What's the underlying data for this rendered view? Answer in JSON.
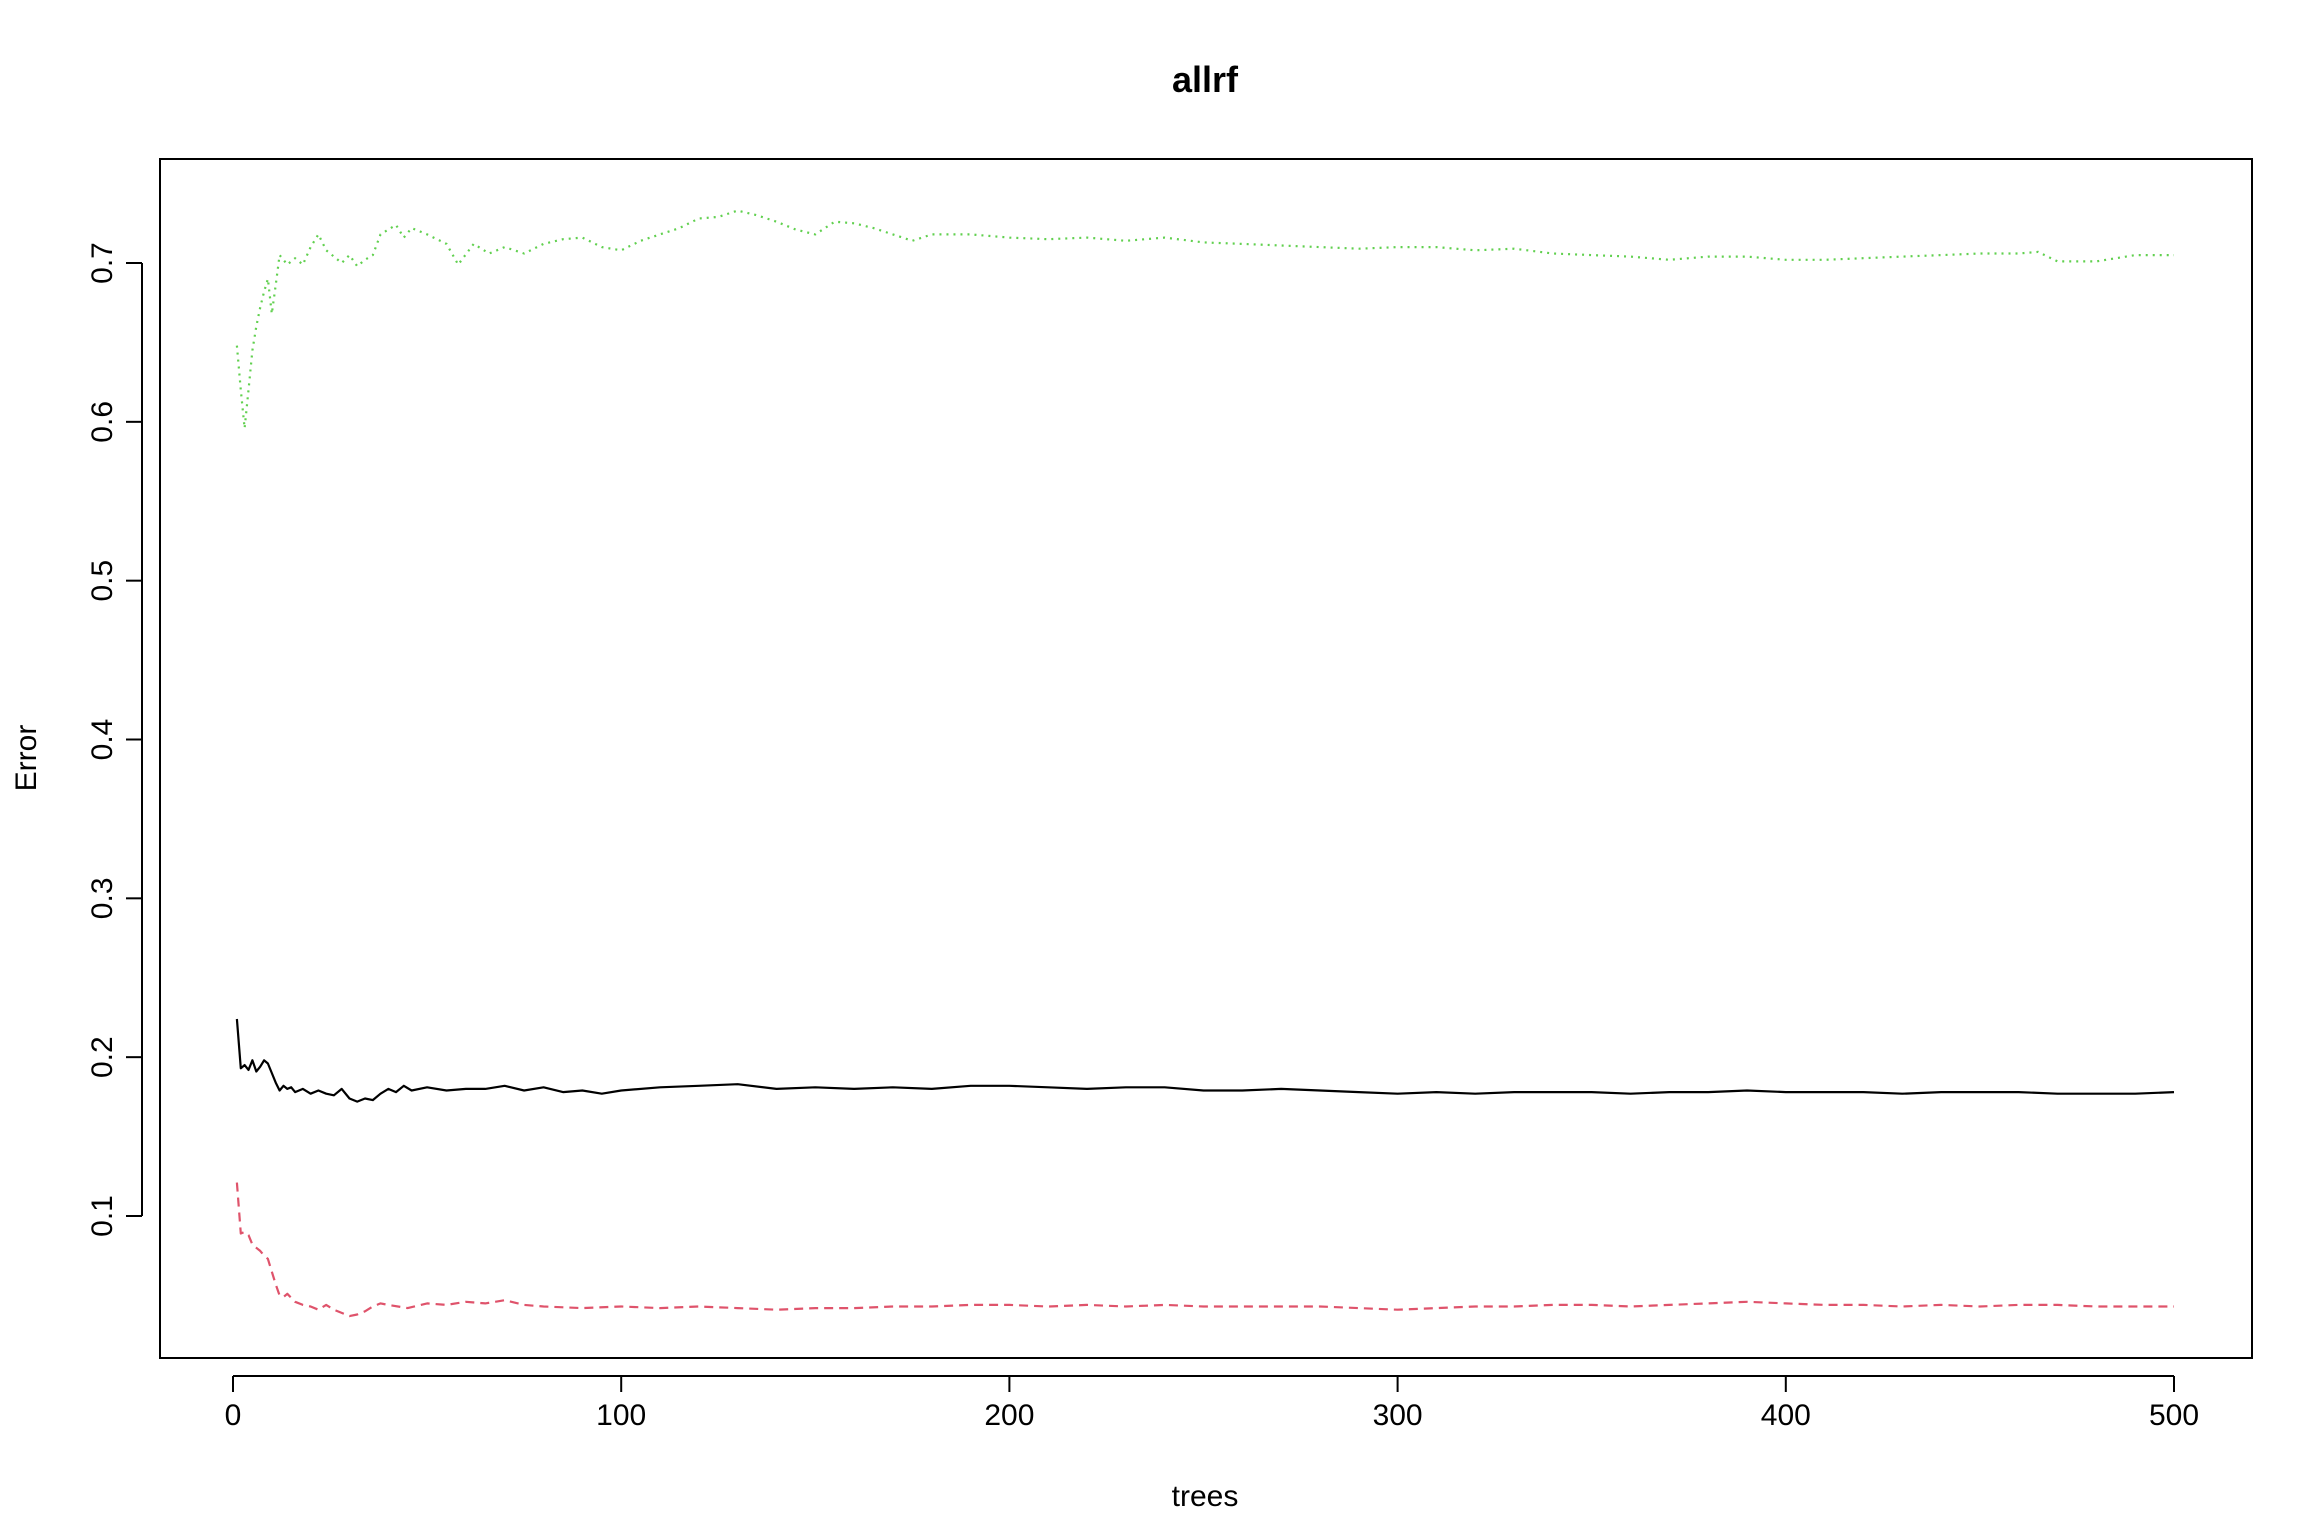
{
  "chart_data": {
    "type": "line",
    "title": "allrf",
    "xlabel": "trees",
    "ylabel": "Error",
    "xlim": [
      0,
      500
    ],
    "ylim": [
      0.04,
      0.74
    ],
    "x_ticks": [
      0,
      100,
      200,
      300,
      400,
      500
    ],
    "y_ticks": [
      0.1,
      0.2,
      0.3,
      0.4,
      0.5,
      0.6,
      0.7
    ],
    "grid": false,
    "legend": "none",
    "series": [
      {
        "color": "#000000",
        "style": "solid",
        "points": [
          [
            1,
            0.224
          ],
          [
            2,
            0.193
          ],
          [
            3,
            0.195
          ],
          [
            4,
            0.192
          ],
          [
            5,
            0.198
          ],
          [
            6,
            0.191
          ],
          [
            7,
            0.194
          ],
          [
            8,
            0.198
          ],
          [
            9,
            0.196
          ],
          [
            10,
            0.19
          ],
          [
            11,
            0.184
          ],
          [
            12,
            0.179
          ],
          [
            13,
            0.182
          ],
          [
            14,
            0.18
          ],
          [
            15,
            0.181
          ],
          [
            16,
            0.178
          ],
          [
            18,
            0.18
          ],
          [
            20,
            0.177
          ],
          [
            22,
            0.179
          ],
          [
            24,
            0.177
          ],
          [
            26,
            0.176
          ],
          [
            28,
            0.18
          ],
          [
            30,
            0.174
          ],
          [
            32,
            0.172
          ],
          [
            34,
            0.174
          ],
          [
            36,
            0.173
          ],
          [
            38,
            0.177
          ],
          [
            40,
            0.18
          ],
          [
            42,
            0.178
          ],
          [
            44,
            0.182
          ],
          [
            46,
            0.179
          ],
          [
            50,
            0.181
          ],
          [
            55,
            0.179
          ],
          [
            60,
            0.18
          ],
          [
            65,
            0.18
          ],
          [
            70,
            0.182
          ],
          [
            75,
            0.179
          ],
          [
            80,
            0.181
          ],
          [
            85,
            0.178
          ],
          [
            90,
            0.179
          ],
          [
            95,
            0.177
          ],
          [
            100,
            0.179
          ],
          [
            110,
            0.181
          ],
          [
            120,
            0.182
          ],
          [
            130,
            0.183
          ],
          [
            140,
            0.18
          ],
          [
            150,
            0.181
          ],
          [
            160,
            0.18
          ],
          [
            170,
            0.181
          ],
          [
            180,
            0.18
          ],
          [
            190,
            0.182
          ],
          [
            200,
            0.182
          ],
          [
            210,
            0.181
          ],
          [
            220,
            0.18
          ],
          [
            230,
            0.181
          ],
          [
            240,
            0.181
          ],
          [
            250,
            0.179
          ],
          [
            260,
            0.179
          ],
          [
            270,
            0.18
          ],
          [
            280,
            0.179
          ],
          [
            290,
            0.178
          ],
          [
            300,
            0.177
          ],
          [
            310,
            0.178
          ],
          [
            320,
            0.177
          ],
          [
            330,
            0.178
          ],
          [
            340,
            0.178
          ],
          [
            350,
            0.178
          ],
          [
            360,
            0.177
          ],
          [
            370,
            0.178
          ],
          [
            380,
            0.178
          ],
          [
            390,
            0.179
          ],
          [
            400,
            0.178
          ],
          [
            410,
            0.178
          ],
          [
            420,
            0.178
          ],
          [
            430,
            0.177
          ],
          [
            440,
            0.178
          ],
          [
            450,
            0.178
          ],
          [
            460,
            0.178
          ],
          [
            470,
            0.177
          ],
          [
            480,
            0.177
          ],
          [
            490,
            0.177
          ],
          [
            500,
            0.178
          ]
        ]
      },
      {
        "color": "#df536b",
        "style": "dashed",
        "points": [
          [
            1,
            0.121
          ],
          [
            2,
            0.089
          ],
          [
            3,
            0.09
          ],
          [
            4,
            0.088
          ],
          [
            5,
            0.082
          ],
          [
            6,
            0.08
          ],
          [
            7,
            0.078
          ],
          [
            8,
            0.075
          ],
          [
            9,
            0.073
          ],
          [
            10,
            0.065
          ],
          [
            11,
            0.057
          ],
          [
            12,
            0.05
          ],
          [
            13,
            0.049
          ],
          [
            14,
            0.051
          ],
          [
            16,
            0.046
          ],
          [
            18,
            0.044
          ],
          [
            20,
            0.043
          ],
          [
            22,
            0.041
          ],
          [
            24,
            0.044
          ],
          [
            26,
            0.041
          ],
          [
            28,
            0.039
          ],
          [
            30,
            0.037
          ],
          [
            32,
            0.038
          ],
          [
            34,
            0.04
          ],
          [
            36,
            0.043
          ],
          [
            38,
            0.045
          ],
          [
            40,
            0.044
          ],
          [
            45,
            0.042
          ],
          [
            50,
            0.045
          ],
          [
            55,
            0.044
          ],
          [
            60,
            0.046
          ],
          [
            65,
            0.045
          ],
          [
            70,
            0.047
          ],
          [
            75,
            0.044
          ],
          [
            80,
            0.043
          ],
          [
            90,
            0.042
          ],
          [
            100,
            0.043
          ],
          [
            110,
            0.042
          ],
          [
            120,
            0.043
          ],
          [
            130,
            0.042
          ],
          [
            140,
            0.041
          ],
          [
            150,
            0.042
          ],
          [
            160,
            0.042
          ],
          [
            170,
            0.043
          ],
          [
            180,
            0.043
          ],
          [
            190,
            0.044
          ],
          [
            200,
            0.044
          ],
          [
            210,
            0.043
          ],
          [
            220,
            0.044
          ],
          [
            230,
            0.043
          ],
          [
            240,
            0.044
          ],
          [
            250,
            0.043
          ],
          [
            260,
            0.043
          ],
          [
            270,
            0.043
          ],
          [
            280,
            0.043
          ],
          [
            290,
            0.042
          ],
          [
            300,
            0.041
          ],
          [
            310,
            0.042
          ],
          [
            320,
            0.043
          ],
          [
            330,
            0.043
          ],
          [
            340,
            0.044
          ],
          [
            350,
            0.044
          ],
          [
            360,
            0.043
          ],
          [
            370,
            0.044
          ],
          [
            380,
            0.045
          ],
          [
            390,
            0.046
          ],
          [
            400,
            0.045
          ],
          [
            410,
            0.044
          ],
          [
            420,
            0.044
          ],
          [
            430,
            0.043
          ],
          [
            440,
            0.044
          ],
          [
            450,
            0.043
          ],
          [
            460,
            0.044
          ],
          [
            470,
            0.044
          ],
          [
            480,
            0.043
          ],
          [
            490,
            0.043
          ],
          [
            500,
            0.043
          ]
        ]
      },
      {
        "color": "#61d04f",
        "style": "dotted",
        "points": [
          [
            1,
            0.648
          ],
          [
            2,
            0.62
          ],
          [
            3,
            0.596
          ],
          [
            4,
            0.62
          ],
          [
            5,
            0.645
          ],
          [
            6,
            0.66
          ],
          [
            7,
            0.672
          ],
          [
            8,
            0.682
          ],
          [
            9,
            0.69
          ],
          [
            10,
            0.668
          ],
          [
            11,
            0.686
          ],
          [
            12,
            0.705
          ],
          [
            14,
            0.699
          ],
          [
            16,
            0.703
          ],
          [
            18,
            0.699
          ],
          [
            20,
            0.71
          ],
          [
            22,
            0.718
          ],
          [
            24,
            0.708
          ],
          [
            26,
            0.704
          ],
          [
            28,
            0.7
          ],
          [
            30,
            0.705
          ],
          [
            32,
            0.698
          ],
          [
            34,
            0.702
          ],
          [
            36,
            0.705
          ],
          [
            38,
            0.718
          ],
          [
            40,
            0.721
          ],
          [
            42,
            0.724
          ],
          [
            44,
            0.716
          ],
          [
            46,
            0.722
          ],
          [
            48,
            0.72
          ],
          [
            50,
            0.718
          ],
          [
            55,
            0.712
          ],
          [
            58,
            0.699
          ],
          [
            62,
            0.712
          ],
          [
            66,
            0.706
          ],
          [
            70,
            0.71
          ],
          [
            75,
            0.706
          ],
          [
            80,
            0.712
          ],
          [
            85,
            0.715
          ],
          [
            90,
            0.716
          ],
          [
            95,
            0.71
          ],
          [
            100,
            0.708
          ],
          [
            105,
            0.714
          ],
          [
            110,
            0.718
          ],
          [
            115,
            0.722
          ],
          [
            120,
            0.728
          ],
          [
            125,
            0.729
          ],
          [
            130,
            0.733
          ],
          [
            135,
            0.73
          ],
          [
            140,
            0.726
          ],
          [
            145,
            0.721
          ],
          [
            150,
            0.718
          ],
          [
            155,
            0.726
          ],
          [
            160,
            0.725
          ],
          [
            165,
            0.722
          ],
          [
            170,
            0.718
          ],
          [
            175,
            0.714
          ],
          [
            180,
            0.718
          ],
          [
            190,
            0.718
          ],
          [
            200,
            0.716
          ],
          [
            210,
            0.715
          ],
          [
            220,
            0.716
          ],
          [
            230,
            0.714
          ],
          [
            240,
            0.716
          ],
          [
            250,
            0.713
          ],
          [
            260,
            0.712
          ],
          [
            270,
            0.711
          ],
          [
            280,
            0.71
          ],
          [
            290,
            0.709
          ],
          [
            300,
            0.71
          ],
          [
            310,
            0.71
          ],
          [
            320,
            0.708
          ],
          [
            330,
            0.709
          ],
          [
            340,
            0.706
          ],
          [
            350,
            0.705
          ],
          [
            360,
            0.704
          ],
          [
            370,
            0.702
          ],
          [
            380,
            0.704
          ],
          [
            390,
            0.704
          ],
          [
            400,
            0.702
          ],
          [
            410,
            0.702
          ],
          [
            420,
            0.703
          ],
          [
            430,
            0.704
          ],
          [
            440,
            0.705
          ],
          [
            450,
            0.706
          ],
          [
            460,
            0.706
          ],
          [
            465,
            0.707
          ],
          [
            470,
            0.701
          ],
          [
            480,
            0.701
          ],
          [
            490,
            0.705
          ],
          [
            500,
            0.705
          ]
        ]
      }
    ]
  }
}
